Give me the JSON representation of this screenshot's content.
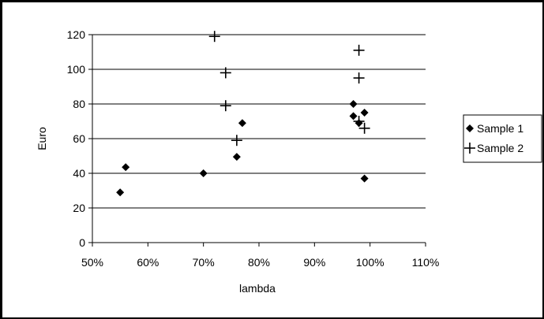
{
  "chart_data": {
    "type": "scatter",
    "title": "",
    "xlabel": "lambda",
    "ylabel": "Euro",
    "xlim": [
      0.5,
      1.1
    ],
    "ylim": [
      0,
      120
    ],
    "x_ticks": [
      0.5,
      0.6,
      0.7,
      0.8,
      0.9,
      1.0,
      1.1
    ],
    "x_tick_labels": [
      "50%",
      "60%",
      "70%",
      "80%",
      "90%",
      "100%",
      "110%"
    ],
    "y_ticks": [
      0,
      20,
      40,
      60,
      80,
      100,
      120
    ],
    "y_tick_labels": [
      "0",
      "20",
      "40",
      "60",
      "80",
      "100",
      "120"
    ],
    "grid": "horizontal",
    "legend_position": "right",
    "series": [
      {
        "name": "Sample 1",
        "marker": "diamond",
        "points": [
          [
            0.55,
            29
          ],
          [
            0.56,
            43.5
          ],
          [
            0.7,
            40
          ],
          [
            0.76,
            49.5
          ],
          [
            0.77,
            69
          ],
          [
            0.97,
            80
          ],
          [
            0.97,
            73
          ],
          [
            0.98,
            69
          ],
          [
            0.99,
            75
          ],
          [
            0.99,
            37
          ]
        ]
      },
      {
        "name": "Sample 2",
        "marker": "plus",
        "points": [
          [
            0.72,
            119
          ],
          [
            0.74,
            98
          ],
          [
            0.74,
            79
          ],
          [
            0.76,
            59
          ],
          [
            0.98,
            111
          ],
          [
            0.98,
            95
          ],
          [
            0.98,
            70
          ],
          [
            0.99,
            66
          ]
        ]
      }
    ]
  }
}
